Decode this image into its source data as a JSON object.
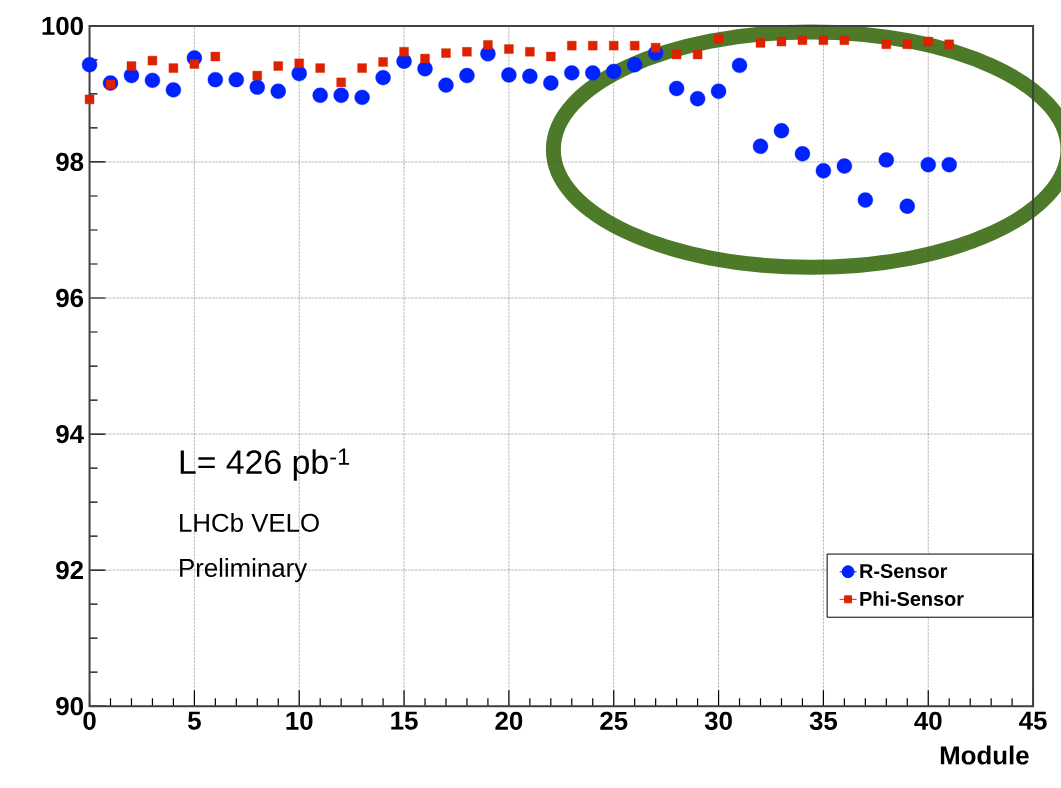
{
  "chart_data": {
    "type": "scatter",
    "xlabel": "Module",
    "xlim": [
      0,
      45
    ],
    "ylim": [
      90,
      100
    ],
    "xticks": [
      0,
      5,
      10,
      15,
      20,
      25,
      30,
      35,
      40,
      45
    ],
    "yticks": [
      90,
      92,
      94,
      96,
      98,
      100
    ],
    "grid": true,
    "legend": "bottom right",
    "x": [
      0,
      1,
      2,
      3,
      4,
      5,
      6,
      7,
      8,
      9,
      10,
      11,
      12,
      13,
      14,
      15,
      16,
      17,
      18,
      19,
      20,
      21,
      22,
      23,
      24,
      25,
      26,
      27,
      28,
      29,
      30,
      31,
      32,
      33,
      34,
      35,
      36,
      37,
      38,
      39,
      40,
      41
    ],
    "series": [
      {
        "name": "R-Sensor",
        "color": "#0022ff",
        "marker": "circle",
        "values": [
          99.43,
          99.16,
          99.27,
          99.2,
          99.06,
          99.53,
          99.21,
          99.21,
          99.1,
          99.04,
          99.3,
          98.98,
          98.98,
          98.95,
          99.24,
          99.48,
          99.37,
          99.13,
          99.27,
          99.59,
          99.28,
          99.26,
          99.16,
          99.31,
          99.31,
          99.33,
          99.43,
          99.6,
          99.08,
          98.93,
          99.04,
          99.42,
          98.23,
          98.46,
          98.12,
          97.87,
          97.94,
          97.44,
          98.03,
          97.35,
          97.96,
          97.96
        ]
      },
      {
        "name": "Phi-Sensor",
        "color": "#dd2200",
        "marker": "square",
        "values": [
          98.92,
          99.14,
          99.41,
          99.49,
          99.38,
          99.44,
          99.55,
          null,
          99.27,
          99.41,
          99.45,
          99.38,
          99.17,
          99.38,
          99.47,
          99.62,
          99.52,
          99.6,
          99.62,
          99.72,
          99.66,
          99.62,
          99.55,
          99.71,
          99.71,
          99.71,
          99.71,
          99.68,
          99.58,
          99.58,
          99.81,
          null,
          99.75,
          99.77,
          99.79,
          99.79,
          99.79,
          null,
          99.73,
          99.73,
          99.77,
          99.73
        ]
      }
    ],
    "annotations": [
      "L= 426 pb$^{-1}$",
      "LHCb VELO",
      "Preliminary"
    ]
  }
}
